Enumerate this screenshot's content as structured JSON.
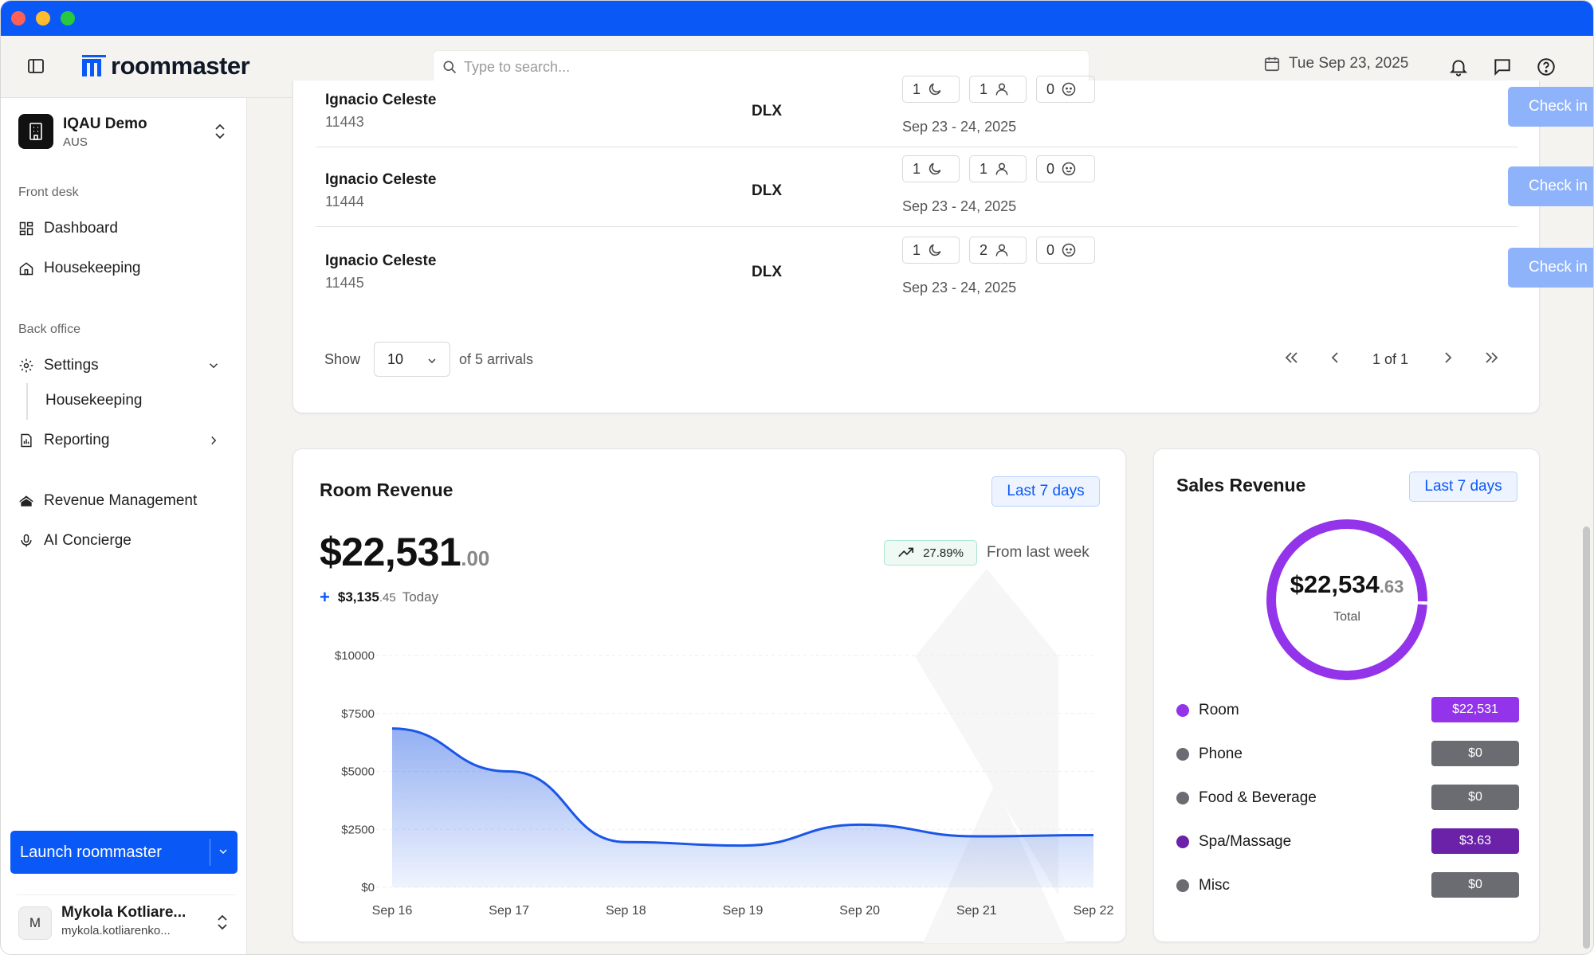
{
  "app": {
    "name": "roommaster",
    "date": "Tue Sep 23, 2025"
  },
  "search": {
    "placeholder": "Type to search..."
  },
  "property": {
    "name": "IQAU Demo",
    "region": "AUS"
  },
  "sidebar": {
    "front_desk_label": "Front desk",
    "dashboard": "Dashboard",
    "housekeeping": "Housekeeping",
    "back_office_label": "Back office",
    "settings": "Settings",
    "settings_housekeeping": "Housekeeping",
    "reporting": "Reporting",
    "revenue_management": "Revenue Management",
    "ai_concierge": "AI Concierge",
    "launch": "Launch roommaster"
  },
  "user": {
    "initial": "M",
    "name": "Mykola Kotliare...",
    "email": "mykola.kotliarenko..."
  },
  "arrivals": {
    "rows": [
      {
        "name": "Ignacio Celeste",
        "id": "11443",
        "room": "DLX",
        "nights": "1",
        "adults": "1",
        "children": "0",
        "dates": "Sep 23 - 24, 2025",
        "action": "Check in"
      },
      {
        "name": "Ignacio Celeste",
        "id": "11444",
        "room": "DLX",
        "nights": "1",
        "adults": "1",
        "children": "0",
        "dates": "Sep 23 - 24, 2025",
        "action": "Check in"
      },
      {
        "name": "Ignacio Celeste",
        "id": "11445",
        "room": "DLX",
        "nights": "1",
        "adults": "2",
        "children": "0",
        "dates": "Sep 23 - 24, 2025",
        "action": "Check in"
      }
    ],
    "show_label": "Show",
    "page_size": "10",
    "of_label": "of 5 arrivals",
    "page_text": "1 of 1"
  },
  "room_revenue": {
    "title": "Room Revenue",
    "range": "Last 7 days",
    "amount": "$22,531",
    "amount_cents": ".00",
    "today_amount": "$3,135",
    "today_cents": ".45",
    "today_label": "Today",
    "growth": "27.89%",
    "growth_label": "From last week"
  },
  "chart_data": {
    "type": "area",
    "title": "Room Revenue",
    "x": [
      "Sep 16",
      "Sep 17",
      "Sep 18",
      "Sep 19",
      "Sep 20",
      "Sep 21",
      "Sep 22"
    ],
    "series": [
      {
        "values": [
          6850,
          5000,
          1950,
          1800,
          2700,
          2200,
          2250
        ]
      }
    ],
    "yticks": [
      "$10000",
      "$7500",
      "$5000",
      "$2500",
      "$0"
    ],
    "ylim": [
      0,
      10000
    ],
    "grid": true,
    "color": "#1a56e8"
  },
  "sales_revenue": {
    "title": "Sales Revenue",
    "range": "Last 7 days",
    "total_amount": "$22,534",
    "total_cents": ".63",
    "total_label": "Total",
    "items": [
      {
        "name": "Room",
        "value": "$22,531",
        "color": "#9333ea"
      },
      {
        "name": "Phone",
        "value": "$0",
        "color": "#6b6b72"
      },
      {
        "name": "Food & Beverage",
        "value": "$0",
        "color": "#6b6b72"
      },
      {
        "name": "Spa/Massage",
        "value": "$3.63",
        "color": "#6b21a8"
      },
      {
        "name": "Misc",
        "value": "$0",
        "color": "#6b6b72"
      }
    ]
  }
}
